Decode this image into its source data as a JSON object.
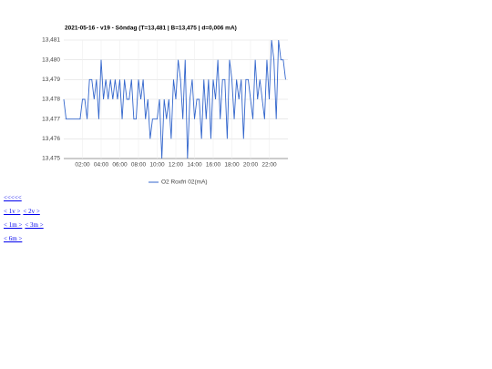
{
  "chart_data": {
    "type": "line",
    "title": "2021-05-16 - v19 - Söndag (T=13,481 | B=13,475 | d=0,006 mA)",
    "x": [
      0,
      0.25,
      0.5,
      0.75,
      1,
      1.25,
      1.5,
      1.75,
      2,
      2.25,
      2.5,
      2.75,
      3,
      3.25,
      3.5,
      3.75,
      4,
      4.25,
      4.5,
      4.75,
      5,
      5.25,
      5.5,
      5.75,
      6,
      6.25,
      6.5,
      6.75,
      7,
      7.25,
      7.5,
      7.75,
      8,
      8.25,
      8.5,
      8.75,
      9,
      9.25,
      9.5,
      9.75,
      10,
      10.25,
      10.5,
      10.75,
      11,
      11.25,
      11.5,
      11.75,
      12,
      12.25,
      12.5,
      12.75,
      13,
      13.25,
      13.5,
      13.75,
      14,
      14.25,
      14.5,
      14.75,
      15,
      15.25,
      15.5,
      15.75,
      16,
      16.25,
      16.5,
      16.75,
      17,
      17.25,
      17.5,
      17.75,
      18,
      18.25,
      18.5,
      18.75,
      19,
      19.25,
      19.5,
      19.75,
      20,
      20.25,
      20.5,
      20.75,
      21,
      21.25,
      21.5,
      21.75,
      22,
      22.25,
      22.5,
      22.75,
      23,
      23.25,
      23.5,
      23.75
    ],
    "series": [
      {
        "name": "O2 Roxfri 02(mA)",
        "color": "#3366cc",
        "values": [
          13.478,
          13.477,
          13.477,
          13.477,
          13.477,
          13.477,
          13.477,
          13.477,
          13.478,
          13.478,
          13.477,
          13.479,
          13.479,
          13.478,
          13.479,
          13.477,
          13.48,
          13.478,
          13.479,
          13.478,
          13.479,
          13.478,
          13.479,
          13.478,
          13.479,
          13.477,
          13.479,
          13.478,
          13.478,
          13.479,
          13.477,
          13.477,
          13.479,
          13.478,
          13.479,
          13.477,
          13.478,
          13.476,
          13.477,
          13.477,
          13.477,
          13.478,
          13.475,
          13.478,
          13.477,
          13.478,
          13.476,
          13.479,
          13.478,
          13.48,
          13.479,
          13.477,
          13.48,
          13.475,
          13.478,
          13.479,
          13.477,
          13.478,
          13.478,
          13.476,
          13.479,
          13.477,
          13.479,
          13.476,
          13.479,
          13.478,
          13.48,
          13.477,
          13.479,
          13.479,
          13.476,
          13.48,
          13.479,
          13.477,
          13.479,
          13.478,
          13.479,
          13.476,
          13.479,
          13.479,
          13.478,
          13.477,
          13.48,
          13.478,
          13.479,
          13.478,
          13.477,
          13.48,
          13.478,
          13.481,
          13.48,
          13.477,
          13.481,
          13.48,
          13.48,
          13.479
        ]
      }
    ],
    "xlim": [
      0,
      24
    ],
    "xticks": [
      {
        "value": 2,
        "label": "02:00"
      },
      {
        "value": 4,
        "label": "04:00"
      },
      {
        "value": 6,
        "label": "06:00"
      },
      {
        "value": 8,
        "label": "08:00"
      },
      {
        "value": 10,
        "label": "10:00"
      },
      {
        "value": 12,
        "label": "12:00"
      },
      {
        "value": 14,
        "label": "14:00"
      },
      {
        "value": 16,
        "label": "16:00"
      },
      {
        "value": 18,
        "label": "18:00"
      },
      {
        "value": 20,
        "label": "20:00"
      },
      {
        "value": 22,
        "label": "22:00"
      }
    ],
    "ylim": [
      13.475,
      13.481
    ],
    "yticks": [
      {
        "value": 13.475,
        "label": "13,475"
      },
      {
        "value": 13.476,
        "label": "13,476"
      },
      {
        "value": 13.477,
        "label": "13,477"
      },
      {
        "value": 13.478,
        "label": "13,478"
      },
      {
        "value": 13.479,
        "label": "13,479"
      },
      {
        "value": 13.48,
        "label": "13,480"
      },
      {
        "value": 13.481,
        "label": "13,481"
      }
    ],
    "grid": true,
    "legend": "bottom"
  },
  "links": [
    [
      "<<<<<"
    ],
    [
      "< 1v >",
      "< 2v >"
    ],
    [
      "< 1m >",
      "< 3m >"
    ],
    [
      "< 6m >"
    ]
  ]
}
